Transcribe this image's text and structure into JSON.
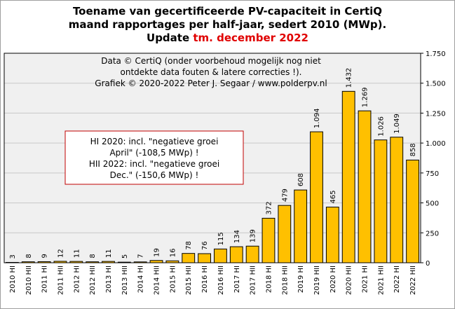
{
  "chart_data": {
    "type": "bar",
    "title_lines": [
      "Toename van gecertificeerde PV-capaciteit in CertiQ",
      "maand rapportages per half-jaar, sedert 2010 (MWp)."
    ],
    "title_update_prefix": "Update",
    "title_update_highlight": "tm. december 2022",
    "categories": [
      "2010 HI",
      "2010 HII",
      "2011 HI",
      "2011 HII",
      "2012 HI",
      "2012 HII",
      "2013 HI",
      "2013 HII",
      "2014 HI",
      "2014 HII",
      "2015 HI",
      "2015 HII",
      "2016 HI",
      "2016 HII",
      "2017 HI",
      "2017 HII",
      "2018 HI",
      "2018 HII",
      "2019 HI",
      "2019 HII",
      "2020 HI",
      "2020 HII",
      "2021 HI",
      "2021 HII",
      "2022 HI",
      "2022 HII"
    ],
    "values": [
      3,
      8,
      9,
      12,
      11,
      8,
      11,
      5,
      7,
      19,
      16,
      78,
      76,
      115,
      134,
      139,
      372,
      479,
      608,
      1094,
      465,
      1432,
      1269,
      1026,
      1049,
      858
    ],
    "value_labels": [
      "3",
      "8",
      "9",
      "12",
      "11",
      "8",
      "11",
      "5",
      "7",
      "19",
      "16",
      "78",
      "76",
      "115",
      "134",
      "139",
      "372",
      "479",
      "608",
      "1.094",
      "465",
      "1.432",
      "1.269",
      "1.026",
      "1.049",
      "858"
    ],
    "ylim": [
      0,
      1750
    ],
    "yticks": [
      0,
      250,
      500,
      750,
      1000,
      1250,
      1500,
      1750
    ],
    "ytick_labels": [
      "0",
      "250",
      "500",
      "750",
      "1.000",
      "1.250",
      "1.500",
      "1.750"
    ],
    "grid": "horizontal",
    "y_axis_side": "right",
    "bar_color": "#ffc000",
    "plot_background": "#f0f0f0",
    "notes": {
      "credit_lines": [
        "Data © CertiQ (onder voorbehoud mogelijk  nog niet",
        "ontdekte data fouten & latere correcties !).",
        "Grafiek  © 2020-2022 Peter J. Segaar / www.polderpv.nl"
      ],
      "box_lines": [
        "HI 2020: incl. \"negatieve groei",
        "April\"  (-108,5 MWp) !",
        "HII 2022: incl. \"negatieve groei",
        "Dec.\" (-150,6 MWp) !"
      ],
      "box_border_color": "#c00000"
    }
  }
}
